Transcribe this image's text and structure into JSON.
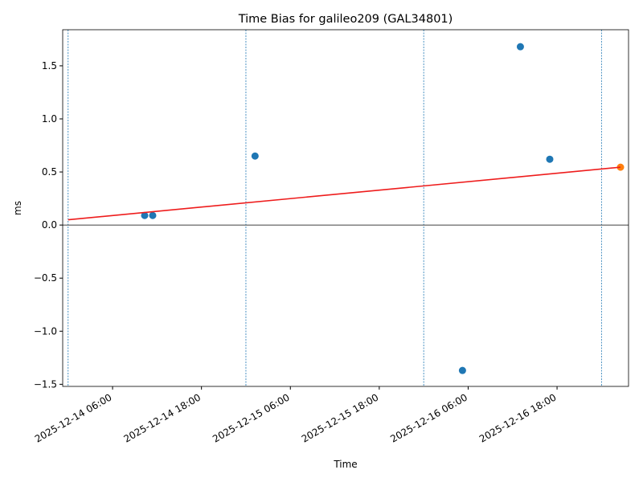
{
  "chart_data": {
    "type": "scatter",
    "title": "Time Bias for galileo209 (GAL34801)",
    "xlabel": "Time",
    "ylabel": "ms",
    "series": [
      {
        "type": "scatter",
        "color": "#1f77b4",
        "x": [
          "2025-12-14 10:20",
          "2025-12-14 11:25",
          "2025-12-15 01:14",
          "2025-12-16 05:14",
          "2025-12-16 13:03",
          "2025-12-16 17:01"
        ],
        "values": [
          0.09,
          0.09,
          0.65,
          -1.37,
          1.68,
          0.62
        ]
      },
      {
        "type": "scatter",
        "color": "#ff7f0e",
        "x": [
          "2025-12-17 02:34"
        ],
        "values": [
          0.545
        ]
      },
      {
        "type": "line",
        "color": "#ee1c1c",
        "x": [
          "2025-12-14 00:00",
          "2025-12-17 02:34"
        ],
        "values": [
          0.05,
          0.545
        ]
      }
    ],
    "vlines": {
      "color": "#1f77b4",
      "dashed": true,
      "x": [
        "2025-12-14 00:00",
        "2025-12-15 00:00",
        "2025-12-16 00:00",
        "2025-12-17 00:00"
      ]
    },
    "hline": 0,
    "xlim": [
      "2025-12-13 23:16",
      "2025-12-17 03:39"
    ],
    "xticks": [
      "2025-12-14 06:00",
      "2025-12-14 18:00",
      "2025-12-15 06:00",
      "2025-12-15 18:00",
      "2025-12-16 06:00",
      "2025-12-16 18:00"
    ],
    "ylim": [
      -1.52,
      1.84
    ],
    "yticks": [
      {
        "value": -1.5,
        "label": "−1.5"
      },
      {
        "value": -1.0,
        "label": "−1.0"
      },
      {
        "value": -0.5,
        "label": "−0.5"
      },
      {
        "value": 0,
        "label": "0.0"
      },
      {
        "value": 0.5,
        "label": "0.5"
      },
      {
        "value": 1.0,
        "label": "1.0"
      },
      {
        "value": 1.5,
        "label": "1.5"
      }
    ]
  }
}
